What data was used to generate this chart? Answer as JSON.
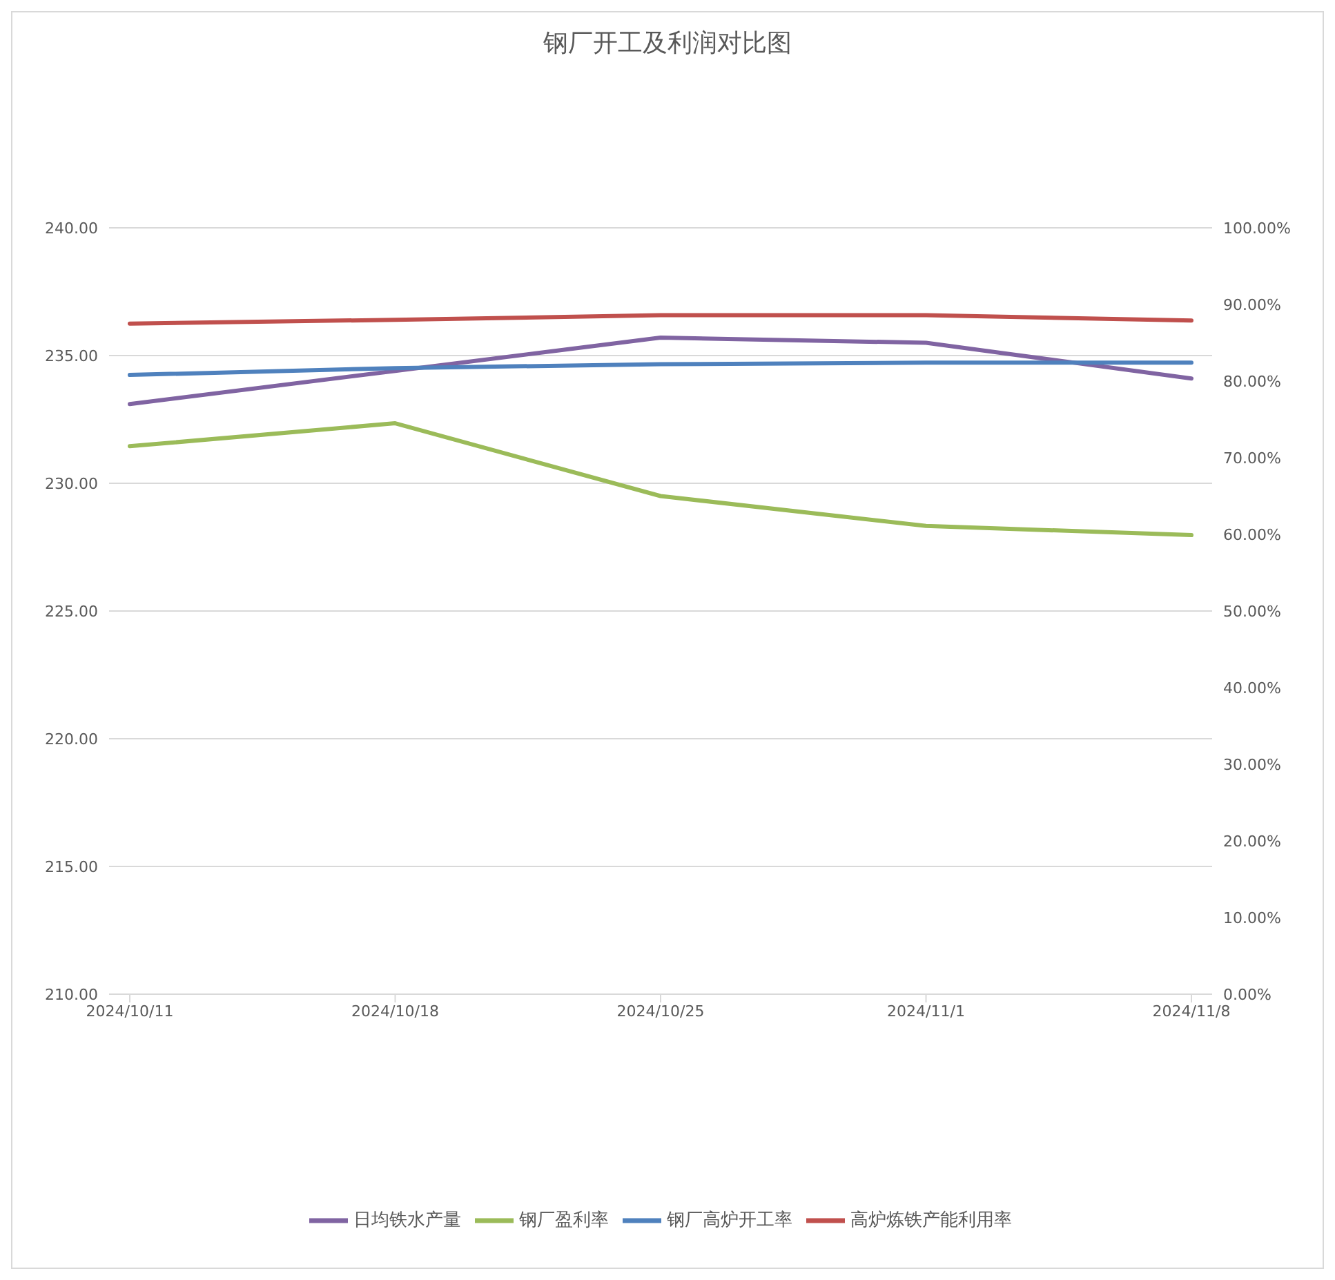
{
  "chart_data": {
    "type": "line",
    "title": "钢厂开工及利润对比图",
    "categories": [
      "2024/10/11",
      "2024/10/18",
      "2024/10/25",
      "2024/11/1",
      "2024/11/8"
    ],
    "series": [
      {
        "name": "日均铁水产量",
        "color": "#8064a2",
        "values": [
          233.1,
          234.4,
          235.7,
          235.5,
          234.1
        ]
      },
      {
        "name": "钢厂高炉开工率",
        "color": "#4f81bd",
        "axis": "y2",
        "values": [
          80.8,
          81.7,
          82.2,
          82.4,
          82.4
        ]
      },
      {
        "name": "高炉炼铁产能利用率",
        "color": "#c0504d",
        "axis": "y2",
        "values": [
          87.5,
          88.0,
          88.6,
          88.6,
          87.9
        ]
      },
      {
        "name": "钢厂盈利率",
        "color": "#9bbb59",
        "axis": "y2",
        "values": [
          71.5,
          74.5,
          65.0,
          61.1,
          59.9
        ]
      }
    ],
    "ylim": [
      210,
      240
    ],
    "yticks": [
      {
        "value": 210,
        "label": "210.00"
      },
      {
        "value": 215,
        "label": "215.00"
      },
      {
        "value": 220,
        "label": "220.00"
      },
      {
        "value": 225,
        "label": "225.00"
      },
      {
        "value": 230,
        "label": "230.00"
      },
      {
        "value": 235,
        "label": "235.00"
      },
      {
        "value": 240,
        "label": "240.00"
      }
    ],
    "y2lim": [
      0,
      100
    ],
    "y2ticks": [
      {
        "value": 0,
        "label": "0.00%"
      },
      {
        "value": 10,
        "label": "10.00%"
      },
      {
        "value": 20,
        "label": "20.00%"
      },
      {
        "value": 30,
        "label": "30.00%"
      },
      {
        "value": 40,
        "label": "40.00%"
      },
      {
        "value": 50,
        "label": "50.00%"
      },
      {
        "value": 60,
        "label": "60.00%"
      },
      {
        "value": 70,
        "label": "70.00%"
      },
      {
        "value": 80,
        "label": "80.00%"
      },
      {
        "value": 90,
        "label": "90.00%"
      },
      {
        "value": 100,
        "label": "100.00%"
      }
    ],
    "grid": "y",
    "legend": "bottom",
    "marker": "none",
    "line_style": "solid"
  }
}
